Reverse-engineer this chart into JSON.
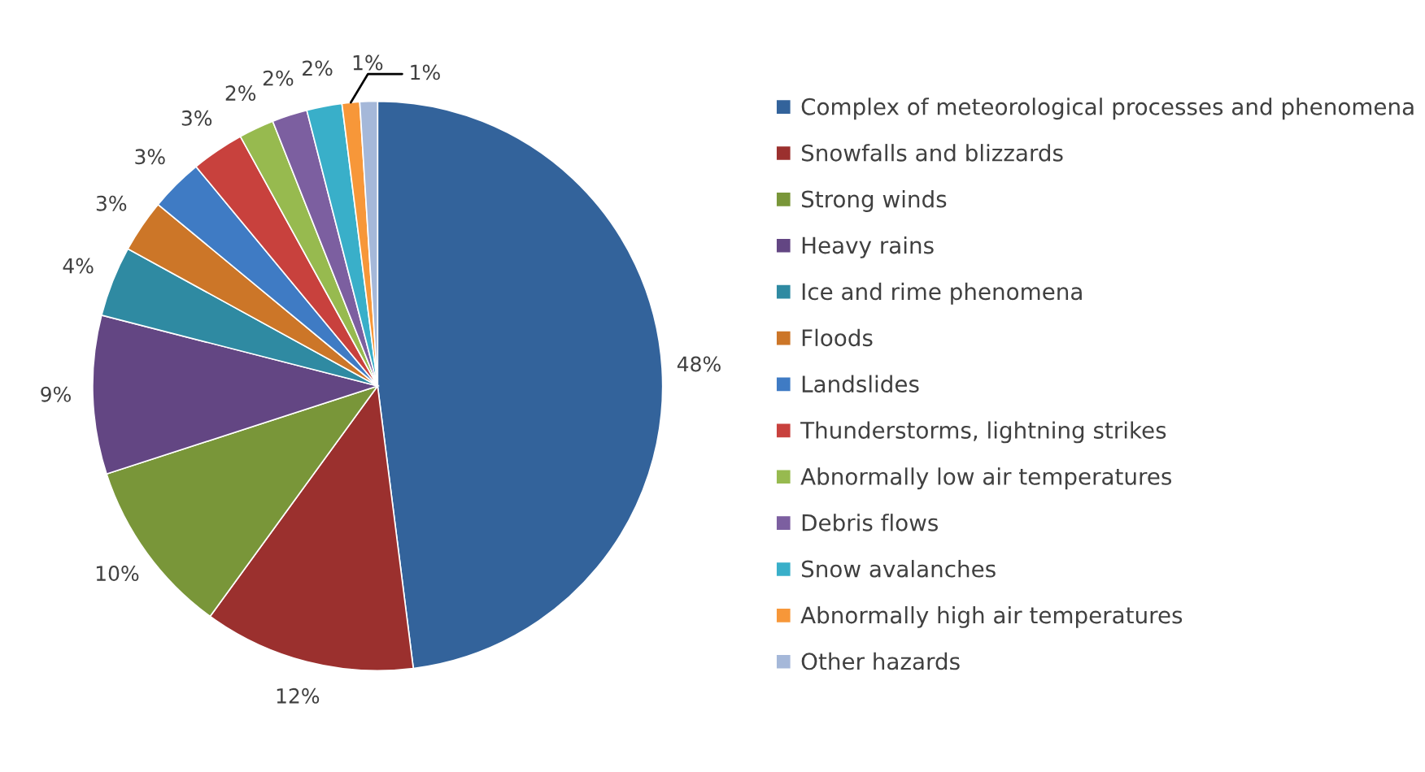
{
  "chart_data": {
    "type": "pie",
    "categories": [
      "Complex of meteorological processes and phenomena",
      "Snowfalls and blizzards",
      "Strong winds",
      "Heavy rains",
      "Ice and rime phenomena",
      "Floods",
      "Landslides",
      "Thunderstorms, lightning strikes",
      "Abnormally low air temperatures",
      "Debris flows",
      "Snow avalanches",
      "Abnormally high air temperatures",
      "Other hazards"
    ],
    "values": [
      48,
      12,
      10,
      9,
      4,
      3,
      3,
      3,
      2,
      2,
      2,
      1,
      1
    ],
    "colors": [
      "#33639b",
      "#9b302e",
      "#799639",
      "#634683",
      "#2f8aa2",
      "#cc7628",
      "#3f7bc4",
      "#c8413d",
      "#97ba4f",
      "#7c5fa0",
      "#39afc9",
      "#f79739",
      "#a5b8d9"
    ],
    "value_labels": [
      "48%",
      "12%",
      "10%",
      "9%",
      "4%",
      "3%",
      "3%",
      "3%",
      "2%",
      "2%",
      "2%",
      "1%",
      "1%"
    ],
    "legend": "right"
  }
}
